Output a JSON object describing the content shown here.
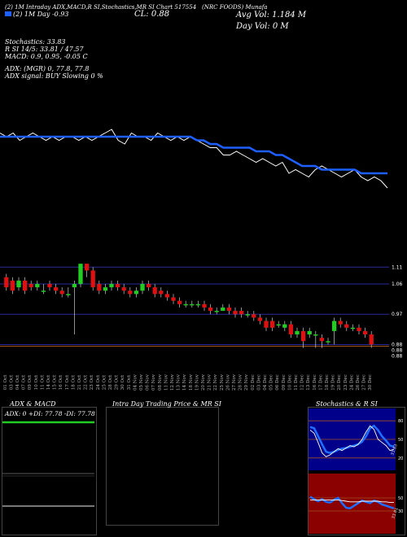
{
  "header": {
    "line1": "(2) 1M Intraday ADX,MACD,R SI,Stochastics,MR SI Chart 517554",
    "company": "(NRC FOODS) Munafa",
    "legend_label": "(2) 1M Day -0.93",
    "close_label": "CL: 0.88",
    "avg_vol": "Avg Vol: 1.184  M",
    "day_vol": "Day Vol: 0  M",
    "stoch": "Stochastics: 33.83",
    "rsi_line": "R                SI 14/5: 33.81 / 47.57",
    "macd": "MACD: 0.9, 0.95, -0.05 C",
    "adx": "ADX:                        (MGR) 0, 77.8, 77.8",
    "adx_signal": "ADX  signal:                                BUY Slowing 0 %"
  },
  "candle_axis": {
    "price_labels": [
      "1.11",
      "1.06",
      "0.97",
      "0.88",
      "0.88",
      "0.88"
    ]
  },
  "chart_data": [
    {
      "type": "line",
      "name": "price-vs-average",
      "x": [
        "01 Oct",
        "03 Oct",
        "04 Oct",
        "07 Oct",
        "09 Oct",
        "10 Oct",
        "11 Oct",
        "14 Oct",
        "15 Oct",
        "16 Oct",
        "17 Oct",
        "18 Oct",
        "21 Oct",
        "22 Oct",
        "23 Oct",
        "24 Oct",
        "25 Oct",
        "28 Oct",
        "29 Oct",
        "30 Oct",
        "31 Oct",
        "04 Nov",
        "05 Nov",
        "06 Nov",
        "07 Nov",
        "08 Nov",
        "11 Nov",
        "12 Nov",
        "13 Nov",
        "14 Nov",
        "18 Nov",
        "19 Nov",
        "20 Nov",
        "21 Nov",
        "22 Nov",
        "25 Nov",
        "26 Nov",
        "27 Nov",
        "28 Nov",
        "29 Nov",
        "02 Dec",
        "03 Dec",
        "04 Dec",
        "05 Dec",
        "06 Dec",
        "09 Dec",
        "10 Dec",
        "11 Dec",
        "12 Dec",
        "13 Dec",
        "16 Dec",
        "17 Dec",
        "18 Dec",
        "19 Dec",
        "20 Dec",
        "23 Dec",
        "24 Dec",
        "26 Dec",
        "27 Dec",
        "30 Dec"
      ],
      "series": [
        {
          "values": [
            1.04,
            1.03,
            1.04,
            1.02,
            1.03,
            1.04,
            1.03,
            1.02,
            1.03,
            1.02,
            1.03,
            1.03,
            1.02,
            1.03,
            1.02,
            1.03,
            1.04,
            1.05,
            1.02,
            1.01,
            1.04,
            1.03,
            1.03,
            1.02,
            1.04,
            1.03,
            1.02,
            1.03,
            1.02,
            1.03,
            1.02,
            1.01,
            1.0,
            1.0,
            0.98,
            0.98,
            0.99,
            0.98,
            0.97,
            0.96,
            0.97,
            0.96,
            0.95,
            0.96,
            0.93,
            0.94,
            0.93,
            0.92,
            0.94,
            0.95,
            0.94,
            0.93,
            0.92,
            0.93,
            0.94,
            0.92,
            0.91,
            0.92,
            0.91,
            0.89
          ]
        },
        {
          "values": [
            1.03,
            1.03,
            1.03,
            1.03,
            1.03,
            1.03,
            1.03,
            1.03,
            1.03,
            1.03,
            1.03,
            1.03,
            1.03,
            1.03,
            1.03,
            1.03,
            1.03,
            1.03,
            1.03,
            1.03,
            1.03,
            1.03,
            1.03,
            1.03,
            1.03,
            1.03,
            1.03,
            1.03,
            1.03,
            1.03,
            1.02,
            1.02,
            1.01,
            1.01,
            1.0,
            1.0,
            1.0,
            1.0,
            1.0,
            0.99,
            0.99,
            0.99,
            0.98,
            0.98,
            0.97,
            0.96,
            0.95,
            0.95,
            0.95,
            0.94,
            0.94,
            0.94,
            0.94,
            0.94,
            0.94,
            0.93,
            0.93,
            0.93,
            0.93,
            0.93
          ]
        }
      ]
    },
    {
      "type": "candlestick",
      "name": "daily-candles",
      "ylim": [
        0.84,
        1.13
      ],
      "x": [
        "01 Oct",
        "03 Oct",
        "04 Oct",
        "07 Oct",
        "09 Oct",
        "10 Oct",
        "11 Oct",
        "14 Oct",
        "15 Oct",
        "16 Oct",
        "17 Oct",
        "18 Oct",
        "21 Oct",
        "22 Oct",
        "23 Oct",
        "24 Oct",
        "25 Oct",
        "28 Oct",
        "29 Oct",
        "30 Oct",
        "31 Oct",
        "04 Nov",
        "05 Nov",
        "06 Nov",
        "07 Nov",
        "08 Nov",
        "11 Nov",
        "12 Nov",
        "13 Nov",
        "14 Nov",
        "18 Nov",
        "19 Nov",
        "20 Nov",
        "21 Nov",
        "22 Nov",
        "25 Nov",
        "26 Nov",
        "27 Nov",
        "28 Nov",
        "29 Nov",
        "02 Dec",
        "03 Dec",
        "04 Dec",
        "05 Dec",
        "06 Dec",
        "09 Dec",
        "10 Dec",
        "11 Dec",
        "12 Dec",
        "13 Dec",
        "16 Dec",
        "17 Dec",
        "18 Dec",
        "19 Dec",
        "20 Dec",
        "23 Dec",
        "24 Dec",
        "26 Dec",
        "27 Dec",
        "30 Dec"
      ],
      "open": [
        1.08,
        1.07,
        1.05,
        1.07,
        1.06,
        1.05,
        1.04,
        1.06,
        1.05,
        1.04,
        1.03,
        1.05,
        1.06,
        1.12,
        1.1,
        1.06,
        1.04,
        1.05,
        1.06,
        1.05,
        1.04,
        1.03,
        1.04,
        1.06,
        1.05,
        1.04,
        1.03,
        1.02,
        1.01,
        1.0,
        1.0,
        1.0,
        1.0,
        0.99,
        0.98,
        0.98,
        0.99,
        0.98,
        0.98,
        0.97,
        0.97,
        0.96,
        0.95,
        0.95,
        0.94,
        0.93,
        0.94,
        0.91,
        0.92,
        0.91,
        0.91,
        0.9,
        0.89,
        0.92,
        0.95,
        0.94,
        0.93,
        0.93,
        0.92,
        0.91
      ],
      "close": [
        1.05,
        1.04,
        1.07,
        1.04,
        1.05,
        1.06,
        1.04,
        1.05,
        1.04,
        1.03,
        1.03,
        1.06,
        1.12,
        1.1,
        1.05,
        1.04,
        1.05,
        1.06,
        1.05,
        1.04,
        1.03,
        1.04,
        1.06,
        1.05,
        1.03,
        1.03,
        1.02,
        1.01,
        1.0,
        1.0,
        1.0,
        1.0,
        0.99,
        0.98,
        0.98,
        0.99,
        0.98,
        0.97,
        0.97,
        0.97,
        0.96,
        0.95,
        0.93,
        0.93,
        0.94,
        0.94,
        0.91,
        0.92,
        0.89,
        0.92,
        0.91,
        0.89,
        0.89,
        0.95,
        0.94,
        0.93,
        0.93,
        0.92,
        0.91,
        0.88
      ],
      "high": [
        1.09,
        1.08,
        1.08,
        1.08,
        1.07,
        1.07,
        1.06,
        1.07,
        1.06,
        1.05,
        1.05,
        1.07,
        1.12,
        1.12,
        1.11,
        1.07,
        1.06,
        1.07,
        1.07,
        1.06,
        1.05,
        1.05,
        1.07,
        1.07,
        1.06,
        1.05,
        1.04,
        1.03,
        1.02,
        1.01,
        1.01,
        1.01,
        1.01,
        1.0,
        0.99,
        1.0,
        1.0,
        0.99,
        0.99,
        0.98,
        0.98,
        0.97,
        0.96,
        0.96,
        0.95,
        0.95,
        0.95,
        0.93,
        0.93,
        0.93,
        0.92,
        0.91,
        0.9,
        0.96,
        0.96,
        0.95,
        0.94,
        0.94,
        0.93,
        0.92
      ],
      "low": [
        1.04,
        1.03,
        1.04,
        1.03,
        1.04,
        1.04,
        1.03,
        1.04,
        1.03,
        1.02,
        1.02,
        0.91,
        1.05,
        1.08,
        1.04,
        1.03,
        1.03,
        1.04,
        1.04,
        1.03,
        1.02,
        1.02,
        1.03,
        1.04,
        1.02,
        1.02,
        1.01,
        1.0,
        0.99,
        0.99,
        0.99,
        0.99,
        0.98,
        0.97,
        0.97,
        0.98,
        0.97,
        0.96,
        0.96,
        0.96,
        0.95,
        0.94,
        0.92,
        0.92,
        0.93,
        0.92,
        0.9,
        0.9,
        0.87,
        0.9,
        0.87,
        0.87,
        0.88,
        0.88,
        0.93,
        0.92,
        0.92,
        0.91,
        0.9,
        0.87
      ]
    },
    {
      "type": "line",
      "name": "stochastics-rsi",
      "title": "Stochastics & R                SI",
      "ylim": [
        0,
        100
      ],
      "y_ticks": [
        "80",
        "50",
        "20"
      ],
      "series": [
        {
          "values": [
            65,
            60,
            45,
            28,
            22,
            25,
            30,
            35,
            32,
            36,
            40,
            38,
            42,
            50,
            62,
            72,
            66,
            50,
            45,
            40,
            32,
            34
          ]
        },
        {
          "values": [
            70,
            68,
            55,
            42,
            30,
            28,
            30,
            33,
            35,
            36,
            38,
            40,
            42,
            46,
            55,
            68,
            72,
            65,
            55,
            48,
            40,
            38
          ]
        }
      ],
      "annotation": "33.83"
    },
    {
      "type": "line",
      "name": "rsi-lower",
      "ylim": [
        0,
        100
      ],
      "y_ticks": [
        "50",
        "30"
      ],
      "series": [
        {
          "values": [
            52,
            48,
            45,
            48,
            44,
            43,
            47,
            50,
            42,
            35,
            34,
            38,
            42,
            46,
            44,
            42,
            46,
            44,
            40,
            38,
            36,
            34
          ]
        },
        {
          "values": [
            47,
            47,
            47,
            47,
            47,
            47,
            47,
            47,
            46,
            45,
            44,
            44,
            44,
            45,
            45,
            45,
            45,
            45,
            44,
            44,
            43,
            43
          ]
        }
      ],
      "annotation": "33.81"
    }
  ],
  "panels": {
    "adx_title": "ADX  & MACD",
    "adx_values": "ADX: 0  +DI: 77.78  -DI: 77.78",
    "mrsi_title": "Intra  Day Trading Price  & MR                SI"
  },
  "colors": {
    "up": "#22cc22",
    "down": "#dd1111",
    "average": "#1e5fff",
    "price": "#ffffff",
    "grid": "#2a2a9a",
    "rsi_bg": "#8b0000"
  }
}
